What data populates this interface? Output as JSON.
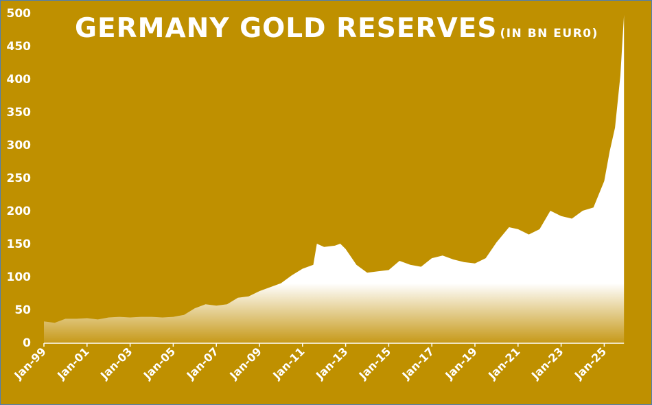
{
  "chart_data": {
    "type": "area",
    "title": "GERMANY GOLD RESERVES",
    "subtitle": "(IN BN EUR0)",
    "xlabel": "",
    "ylabel": "",
    "ylim": [
      0,
      500
    ],
    "yticks": [
      0,
      50,
      100,
      150,
      200,
      250,
      300,
      350,
      400,
      450,
      500
    ],
    "xticks": [
      "Jan-99",
      "Jan-01",
      "Jan-03",
      "Jan-05",
      "Jan-07",
      "Jan-09",
      "Jan-11",
      "Jan-13",
      "Jan-15",
      "Jan-17",
      "Jan-19",
      "Jan-21",
      "Jan-23",
      "Jan-25"
    ],
    "grid": false,
    "legend": "none",
    "series": [
      {
        "name": "Germany gold reserves (bn EUR)",
        "x": [
          "Jan-99",
          "Jul-99",
          "Jan-00",
          "Jul-00",
          "Jan-01",
          "Jul-01",
          "Jan-02",
          "Jul-02",
          "Jan-03",
          "Jul-03",
          "Jan-04",
          "Jul-04",
          "Jan-05",
          "Jul-05",
          "Jan-06",
          "Jul-06",
          "Jan-07",
          "Jul-07",
          "Jan-08",
          "Jul-08",
          "Jan-09",
          "Jul-09",
          "Jan-10",
          "Jul-10",
          "Jan-11",
          "Jul-11",
          "Sep-11",
          "Jan-12",
          "Jul-12",
          "Oct-12",
          "Jan-13",
          "Jul-13",
          "Jan-14",
          "Jul-14",
          "Jan-15",
          "Jul-15",
          "Jan-16",
          "Jul-16",
          "Jan-17",
          "Jul-17",
          "Jan-18",
          "Jul-18",
          "Jan-19",
          "Jul-19",
          "Jan-20",
          "Aug-20",
          "Jan-21",
          "Jul-21",
          "Jan-22",
          "Jul-22",
          "Jan-23",
          "Jul-23",
          "Jan-24",
          "Jul-24",
          "Jan-25",
          "Apr-25",
          "Jul-25",
          "Oct-25",
          "Dec-25"
        ],
        "values": [
          32,
          30,
          36,
          36,
          37,
          35,
          38,
          39,
          38,
          39,
          39,
          38,
          39,
          42,
          52,
          58,
          56,
          58,
          68,
          70,
          78,
          84,
          90,
          102,
          112,
          118,
          150,
          145,
          147,
          150,
          142,
          118,
          106,
          108,
          110,
          124,
          118,
          115,
          128,
          132,
          126,
          122,
          120,
          128,
          152,
          175,
          172,
          164,
          172,
          200,
          192,
          188,
          200,
          205,
          245,
          290,
          326,
          405,
          497
        ]
      }
    ]
  },
  "colors": {
    "background": "#BF9000",
    "area_top": "#FFFFFF",
    "area_bottom": "#C79A1A",
    "border": "#4A7EBB",
    "text": "#FFFFFF"
  }
}
